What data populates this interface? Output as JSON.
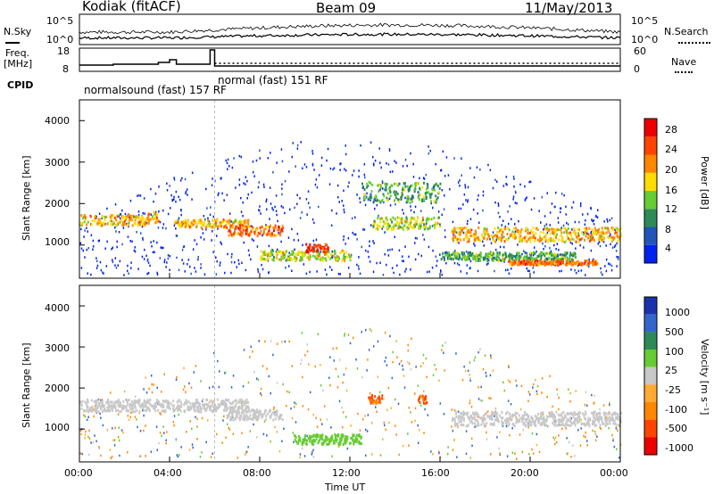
{
  "header": {
    "station": "Kodiak (fitACF)",
    "beam": "Beam 09",
    "date": "11/May/2013"
  },
  "noise_panel": {
    "left_label": "N.Sky",
    "right_label": "N.Search",
    "left_ticks": [
      "10^5",
      "10^0"
    ],
    "right_ticks": [
      "10^5",
      "10^0"
    ]
  },
  "freq_panel": {
    "left_label_line1": "Freq.",
    "left_label_line2": "[MHz]",
    "left_ticks": [
      "18",
      "8"
    ],
    "right_label": "Nave",
    "right_ticks": [
      "60",
      "0"
    ]
  },
  "cpid_panel": {
    "label": "CPID",
    "modes": [
      "normalsound (fast) 157 RF",
      "normal (fast) 151 RF"
    ]
  },
  "power_panel": {
    "ylabel": "Slant Range [km]",
    "yticks": [
      "4000",
      "3000",
      "2000",
      "1000"
    ],
    "colorbar_label": "Power [dB]",
    "colorbar_ticks": [
      "28",
      "24",
      "20",
      "16",
      "12",
      "8",
      "4"
    ],
    "colors": [
      "#0022ee",
      "#2255bb",
      "#2e8b57",
      "#66cc33",
      "#ffdd00",
      "#ff8800",
      "#ff4400",
      "#ee0000"
    ]
  },
  "velocity_panel": {
    "ylabel": "Slant Range [km]",
    "yticks": [
      "4000",
      "3000",
      "2000",
      "1000"
    ],
    "colorbar_label": "Velocity [m s⁻¹]",
    "colorbar_ticks": [
      "1000",
      "500",
      "100",
      "25",
      "-25",
      "-100",
      "-500",
      "-1000"
    ],
    "colors": [
      "#1a33aa",
      "#3366cc",
      "#2e8b57",
      "#66cc33",
      "#c8c8c8",
      "#ffaa33",
      "#ff8800",
      "#ff4400",
      "#ee0000"
    ]
  },
  "xaxis": {
    "label": "Time UT",
    "ticks": [
      "00:00",
      "04:00",
      "08:00",
      "12:00",
      "16:00",
      "20:00",
      "00:00"
    ]
  },
  "chart_data": {
    "type": "heatmap",
    "xlabel": "Time UT",
    "ylabel": "Slant Range [km]",
    "xlim_hours": [
      0,
      24
    ],
    "ylim_km": [
      200,
      4500
    ],
    "power_bands": [
      {
        "t0": 0.0,
        "t1": 3.0,
        "range_km": [
          1500,
          1750
        ],
        "power_db": 20
      },
      {
        "t0": 3.0,
        "t1": 3.5,
        "range_km": [
          1550,
          1850
        ],
        "power_db": 20
      },
      {
        "t0": 4.2,
        "t1": 7.5,
        "range_km": [
          1450,
          1650
        ],
        "power_db": 20
      },
      {
        "t0": 6.5,
        "t1": 9.0,
        "range_km": [
          1250,
          1500
        ],
        "power_db": 24
      },
      {
        "t0": 8.0,
        "t1": 12.0,
        "range_km": [
          650,
          900
        ],
        "power_db": 16
      },
      {
        "t0": 10.0,
        "t1": 11.0,
        "range_km": [
          850,
          1050
        ],
        "power_db": 28
      },
      {
        "t0": 12.5,
        "t1": 16.0,
        "range_km": [
          2050,
          2550
        ],
        "power_db": 12
      },
      {
        "t0": 13.0,
        "t1": 16.0,
        "range_km": [
          1400,
          1700
        ],
        "power_db": 16
      },
      {
        "t0": 16.5,
        "t1": 24.0,
        "range_km": [
          1100,
          1450
        ],
        "power_db": 20
      },
      {
        "t0": 16.0,
        "t1": 22.0,
        "range_km": [
          650,
          850
        ],
        "power_db": 12
      },
      {
        "t0": 19.0,
        "t1": 23.0,
        "range_km": [
          550,
          650
        ],
        "power_db": 24
      }
    ],
    "velocity_bands": [
      {
        "t0": 0.0,
        "t1": 7.5,
        "range_km": [
          1450,
          1750
        ],
        "velocity": 0
      },
      {
        "t0": 6.5,
        "t1": 9.0,
        "range_km": [
          1250,
          1500
        ],
        "velocity": 0
      },
      {
        "t0": 9.5,
        "t1": 12.5,
        "range_km": [
          650,
          900
        ],
        "velocity": 50
      },
      {
        "t0": 12.8,
        "t1": 13.4,
        "range_km": [
          1650,
          1850
        ],
        "velocity": -500
      },
      {
        "t0": 15.0,
        "t1": 15.4,
        "range_km": [
          1650,
          1850
        ],
        "velocity": -500
      },
      {
        "t0": 16.5,
        "t1": 24.0,
        "range_km": [
          1100,
          1450
        ],
        "velocity": 0
      }
    ]
  }
}
